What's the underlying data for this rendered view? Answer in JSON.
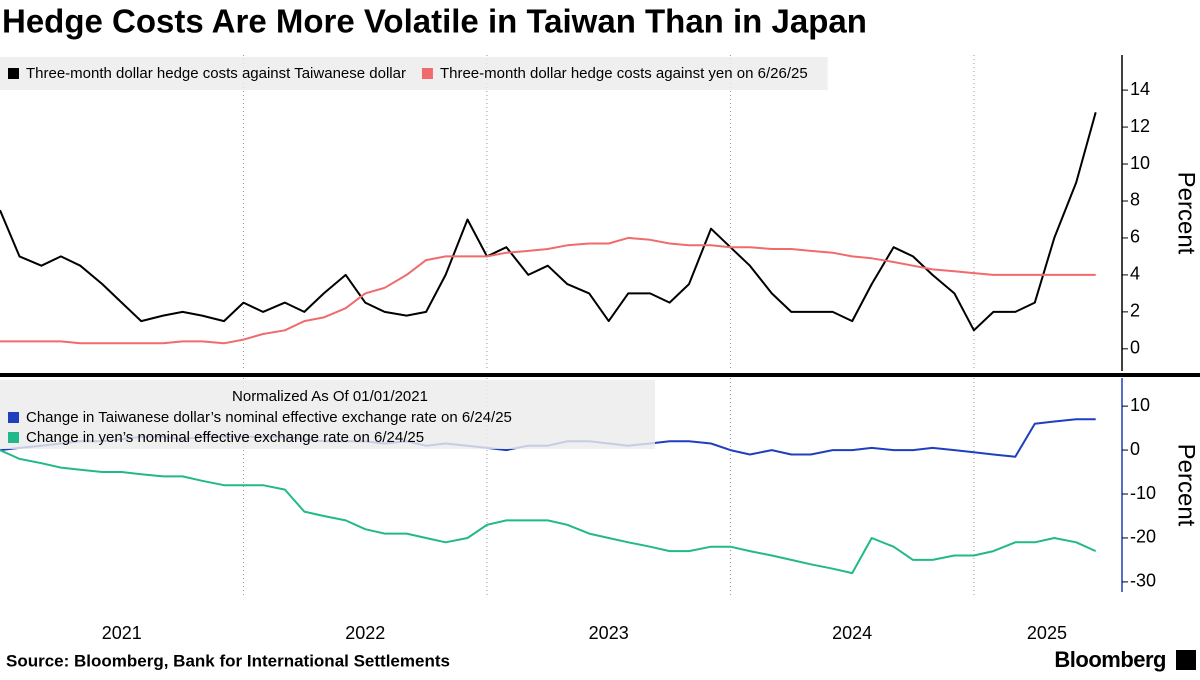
{
  "title": "Hedge Costs Are More Volatile in Taiwan Than in Japan",
  "source": "Source: Bloomberg, Bank for International Settlements",
  "brand": "Bloomberg",
  "chart_data": [
    {
      "type": "line",
      "ylabel": "Percent",
      "x": [
        2021,
        2021.08,
        2021.17,
        2021.25,
        2021.33,
        2021.42,
        2021.5,
        2021.58,
        2021.67,
        2021.75,
        2021.83,
        2021.92,
        2022,
        2022.08,
        2022.17,
        2022.25,
        2022.33,
        2022.42,
        2022.5,
        2022.58,
        2022.67,
        2022.75,
        2022.83,
        2022.92,
        2023,
        2023.08,
        2023.17,
        2023.25,
        2023.33,
        2023.42,
        2023.5,
        2023.58,
        2023.67,
        2023.75,
        2023.83,
        2023.92,
        2024,
        2024.08,
        2024.17,
        2024.25,
        2024.33,
        2024.42,
        2024.5,
        2024.58,
        2024.67,
        2024.75,
        2024.83,
        2024.92,
        2025,
        2025.08,
        2025.17,
        2025.25,
        2025.33,
        2025.42,
        2025.5
      ],
      "xlim": [
        2021,
        2025.6
      ],
      "xgrid": [
        2022,
        2023,
        2024,
        2025
      ],
      "ylim": [
        -1.2,
        15.9
      ],
      "yticks": [
        0,
        2,
        4,
        6,
        8,
        10,
        12,
        14
      ],
      "series": [
        {
          "name": "Three-month dollar hedge costs against Taiwanese dollar",
          "color": "#000000",
          "values": [
            7.5,
            5.0,
            4.5,
            5.0,
            4.5,
            3.5,
            2.5,
            1.5,
            1.8,
            2.0,
            1.8,
            1.5,
            2.5,
            2.0,
            2.5,
            2.0,
            3.0,
            4.0,
            2.5,
            2.0,
            1.8,
            2.0,
            4.0,
            7.0,
            5.0,
            5.5,
            4.0,
            4.5,
            3.5,
            3.0,
            1.5,
            3.0,
            3.0,
            2.5,
            3.5,
            6.5,
            5.5,
            4.5,
            3.0,
            2.0,
            2.0,
            2.0,
            1.5,
            3.5,
            5.5,
            5.0,
            4.0,
            3.0,
            1.0,
            2.0,
            2.0,
            2.5,
            6.0,
            9.0,
            12.8
          ]
        },
        {
          "name": "Three-month dollar hedge costs against yen on 6/26/25",
          "color": "#f06b6b",
          "values": [
            0.4,
            0.4,
            0.4,
            0.4,
            0.3,
            0.3,
            0.3,
            0.3,
            0.3,
            0.4,
            0.4,
            0.3,
            0.5,
            0.8,
            1.0,
            1.5,
            1.7,
            2.2,
            3.0,
            3.3,
            4.0,
            4.8,
            5.0,
            5.0,
            5.0,
            5.2,
            5.3,
            5.4,
            5.6,
            5.7,
            5.7,
            6.0,
            5.9,
            5.7,
            5.6,
            5.6,
            5.5,
            5.5,
            5.4,
            5.4,
            5.3,
            5.2,
            5.0,
            4.9,
            4.7,
            4.5,
            4.3,
            4.2,
            4.1,
            4.0,
            4.0,
            4.0,
            4.0,
            4.0,
            4.0
          ]
        }
      ]
    },
    {
      "type": "line",
      "subtitle": "Normalized As Of 01/01/2021",
      "ylabel": "Percent",
      "x": [
        2021,
        2021.08,
        2021.17,
        2021.25,
        2021.33,
        2021.42,
        2021.5,
        2021.58,
        2021.67,
        2021.75,
        2021.83,
        2021.92,
        2022,
        2022.08,
        2022.17,
        2022.25,
        2022.33,
        2022.42,
        2022.5,
        2022.58,
        2022.67,
        2022.75,
        2022.83,
        2022.92,
        2023,
        2023.08,
        2023.17,
        2023.25,
        2023.33,
        2023.42,
        2023.5,
        2023.58,
        2023.67,
        2023.75,
        2023.83,
        2023.92,
        2024,
        2024.08,
        2024.17,
        2024.25,
        2024.33,
        2024.42,
        2024.5,
        2024.58,
        2024.67,
        2024.75,
        2024.83,
        2024.92,
        2025,
        2025.08,
        2025.17,
        2025.25,
        2025.33,
        2025.42,
        2025.5
      ],
      "xlim": [
        2021,
        2025.6
      ],
      "xgrid": [
        2022,
        2023,
        2024,
        2025
      ],
      "xticks": [
        {
          "value": 2021.5,
          "label": "2021"
        },
        {
          "value": 2022.5,
          "label": "2022"
        },
        {
          "value": 2023.5,
          "label": "2023"
        },
        {
          "value": 2024.5,
          "label": "2024"
        },
        {
          "value": 2025.3,
          "label": "2025"
        }
      ],
      "ylim": [
        -32.3,
        16.4
      ],
      "yticks": [
        -30,
        -20,
        -10,
        0,
        10
      ],
      "series": [
        {
          "name": "Change in Taiwanese dollar’s nominal effective exchange rate on 6/24/25",
          "color": "#1f3fbf",
          "values": [
            0,
            0.5,
            1,
            1.5,
            2,
            2,
            2.5,
            3,
            3,
            2.5,
            3,
            3,
            3,
            3,
            3,
            2.5,
            2,
            2,
            2,
            1.5,
            2,
            1,
            1.5,
            1,
            0.5,
            0,
            1,
            1,
            2,
            2,
            1.5,
            1,
            1.5,
            2,
            2,
            1.5,
            0,
            -1,
            0,
            -1,
            -1,
            0,
            0,
            0.5,
            0,
            0,
            0.5,
            0,
            -0.5,
            -1,
            -1.5,
            6,
            6.5,
            7,
            7
          ]
        },
        {
          "name": "Change in yen’s nominal effective exchange rate on 6/24/25",
          "color": "#22b98a",
          "values": [
            0,
            -2,
            -3,
            -4,
            -4.5,
            -5,
            -5,
            -5.5,
            -6,
            -6,
            -7,
            -8,
            -8,
            -8,
            -9,
            -14,
            -15,
            -16,
            -18,
            -19,
            -19,
            -20,
            -21,
            -20,
            -17,
            -16,
            -16,
            -16,
            -17,
            -19,
            -20,
            -21,
            -22,
            -23,
            -23,
            -22,
            -22,
            -23,
            -24,
            -25,
            -26,
            -27,
            -28,
            -20,
            -22,
            -25,
            -25,
            -24,
            -24,
            -23,
            -21,
            -21,
            -20,
            -21,
            -23
          ]
        }
      ]
    }
  ]
}
